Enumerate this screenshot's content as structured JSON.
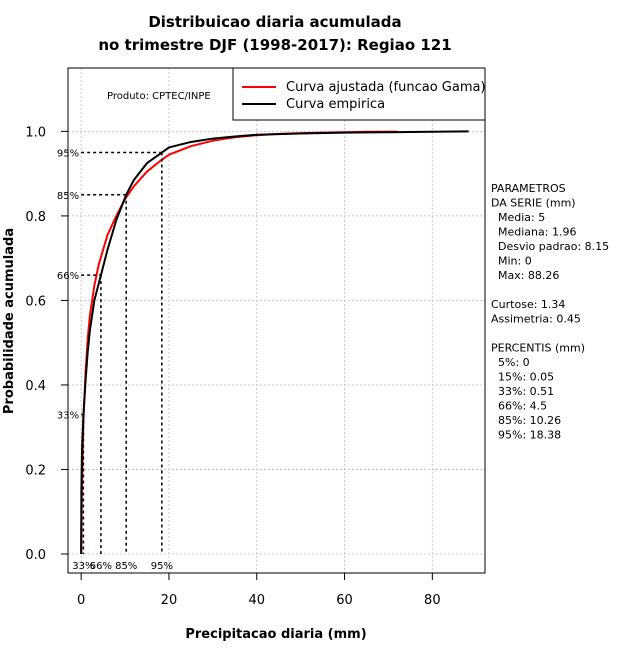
{
  "chart_data": {
    "type": "line",
    "title_line1": "Distribuicao diaria acumulada",
    "title_line2": "no trimestre DJF (1998-2017): Regiao 121",
    "xlabel": "Precipitacao diaria (mm)",
    "ylabel": "Probabilidade acumulada",
    "xlim": [
      -3,
      92
    ],
    "ylim": [
      -0.045,
      1.15
    ],
    "x_ticks": [
      0,
      20,
      40,
      60,
      80
    ],
    "x_tick_labels": [
      "0",
      "20",
      "40",
      "60",
      "80"
    ],
    "y_ticks": [
      0.0,
      0.2,
      0.4,
      0.6,
      0.8,
      1.0
    ],
    "y_tick_labels": [
      "0.0",
      "0.2",
      "0.4",
      "0.6",
      "0.8",
      "1.0"
    ],
    "grid": true,
    "product_label": "Produto: CPTEC/INPE",
    "legend": {
      "position": "top-right",
      "entries": [
        {
          "label": "Curva ajustada (funcao Gama)",
          "color": "#ff0000"
        },
        {
          "label": "Curva empirica",
          "color": "#000000"
        }
      ]
    },
    "series": [
      {
        "name": "Curva ajustada (funcao Gama)",
        "color": "#ff0000",
        "x": [
          0,
          0.05,
          0.2,
          0.5,
          1,
          1.5,
          2,
          3,
          4,
          5,
          6,
          8,
          10,
          12,
          15,
          18,
          20,
          25,
          30,
          35,
          40,
          45,
          50,
          55,
          60,
          65,
          72
        ],
        "y": [
          0.0,
          0.06,
          0.17,
          0.31,
          0.43,
          0.51,
          0.565,
          0.635,
          0.685,
          0.72,
          0.755,
          0.8,
          0.84,
          0.87,
          0.905,
          0.93,
          0.945,
          0.965,
          0.978,
          0.986,
          0.991,
          0.994,
          0.996,
          0.997,
          0.998,
          0.999,
          0.9995
        ]
      },
      {
        "name": "Curva empirica",
        "color": "#000000",
        "x": [
          0,
          0.05,
          0.2,
          0.51,
          1,
          1.5,
          2,
          3,
          4.5,
          6,
          8,
          10.26,
          12,
          15,
          18.38,
          20,
          25,
          30,
          35,
          40,
          50,
          60,
          70,
          80,
          88.26
        ],
        "y": [
          0.0,
          0.15,
          0.25,
          0.33,
          0.41,
          0.48,
          0.53,
          0.6,
          0.66,
          0.72,
          0.79,
          0.85,
          0.885,
          0.925,
          0.95,
          0.962,
          0.975,
          0.983,
          0.988,
          0.992,
          0.995,
          0.997,
          0.998,
          0.999,
          1.0
        ]
      }
    ],
    "percentile_markers": [
      {
        "label": "33%",
        "prob": 0.33,
        "value": 0.51
      },
      {
        "label": "66%",
        "prob": 0.66,
        "value": 4.5
      },
      {
        "label": "85%",
        "prob": 0.85,
        "value": 10.26
      },
      {
        "label": "95%",
        "prob": 0.95,
        "value": 18.38
      }
    ],
    "stats_text": [
      "PARAMETROS",
      "DA SERIE (mm)",
      "  Media: 5",
      "  Mediana: 1.96",
      "  Desvio padrao: 8.15",
      "  Min: 0",
      "  Max: 88.26",
      "",
      "Curtose: 1.34",
      "Assimetria: 0.45",
      "",
      "PERCENTIS (mm)",
      "  5%: 0",
      "  15%: 0.05",
      "  33%: 0.51",
      "  66%: 4.5",
      "  85%: 10.26",
      "  95%: 18.38"
    ]
  }
}
